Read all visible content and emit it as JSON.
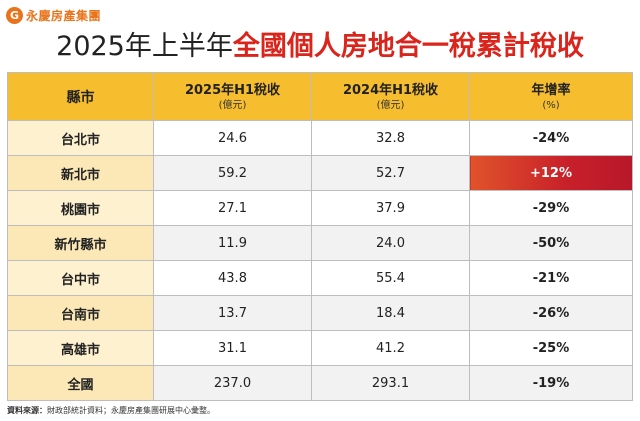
{
  "brand": {
    "mark": "G",
    "name": "永慶房產集團",
    "accent": "#e8741c"
  },
  "title": {
    "plain": "2025年上半年",
    "highlight": "全國個人房地合一稅累計稅收"
  },
  "table": {
    "headers": {
      "county": "縣市",
      "h2025": "2025年H1稅收",
      "h2025_unit": "(億元)",
      "h2024": "2024年H1稅收",
      "h2024_unit": "(億元)",
      "rate": "年增率",
      "rate_unit": "(%)"
    },
    "rows": [
      {
        "county": "台北市",
        "v2025": "24.6",
        "v2024": "32.8",
        "rate": "-24%"
      },
      {
        "county": "新北市",
        "v2025": "59.2",
        "v2024": "52.7",
        "rate": "+12%"
      },
      {
        "county": "桃園市",
        "v2025": "27.1",
        "v2024": "37.9",
        "rate": "-29%"
      },
      {
        "county": "新竹縣市",
        "v2025": "11.9",
        "v2024": "24.0",
        "rate": "-50%"
      },
      {
        "county": "台中市",
        "v2025": "43.8",
        "v2024": "55.4",
        "rate": "-21%"
      },
      {
        "county": "台南市",
        "v2025": "13.7",
        "v2024": "18.4",
        "rate": "-26%"
      },
      {
        "county": "高雄市",
        "v2025": "31.1",
        "v2024": "41.2",
        "rate": "-25%"
      },
      {
        "county": "全國",
        "v2025": "237.0",
        "v2024": "293.1",
        "rate": "-19%"
      }
    ]
  },
  "footer": {
    "label": "資料來源：",
    "text": "財政部統計資料；永慶房產集團研展中心彙整。"
  },
  "colors": {
    "header_bg": "#f6be2e",
    "title_highlight": "#d9251c",
    "increase_bg": "#c8202a"
  }
}
